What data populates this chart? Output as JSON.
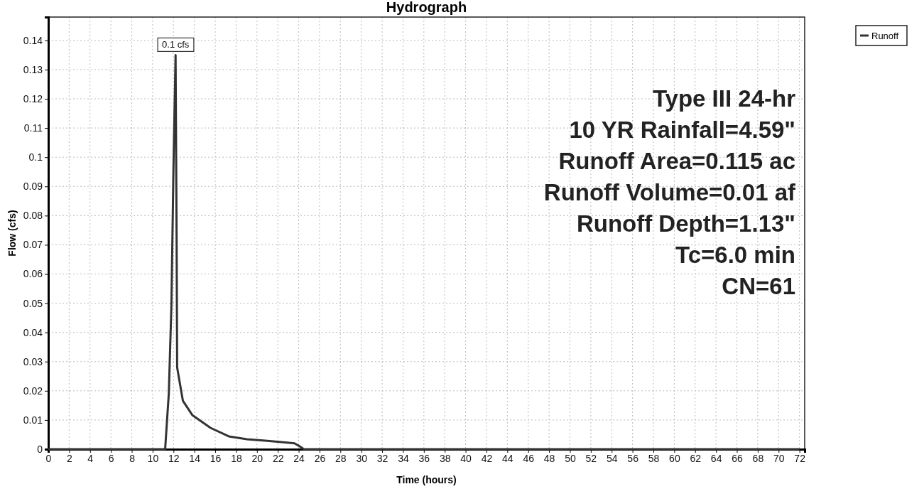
{
  "chart_data": {
    "type": "line",
    "title": "Hydrograph",
    "xlabel": "Time  (hours)",
    "ylabel": "Flow (cfs)",
    "xlim": [
      0,
      72.5
    ],
    "xticks": [
      0,
      2,
      4,
      6,
      8,
      10,
      12,
      14,
      16,
      18,
      20,
      22,
      24,
      26,
      28,
      30,
      32,
      34,
      36,
      38,
      40,
      42,
      44,
      46,
      48,
      50,
      52,
      54,
      56,
      58,
      60,
      62,
      64,
      66,
      68,
      70,
      72
    ],
    "ylim": [
      0,
      0.148
    ],
    "yticks": [
      0,
      0.01,
      0.02,
      0.03,
      0.04,
      0.05,
      0.06,
      0.07,
      0.08,
      0.09,
      0.1,
      0.11,
      0.12,
      0.13,
      0.14
    ],
    "grid": true,
    "legend": "top right",
    "marker": "none",
    "line_style": "solid",
    "series": [
      {
        "name": "Runoff",
        "color": "#333333",
        "x": [
          0,
          11.2,
          11.55,
          11.8,
          12.0,
          12.2,
          12.3,
          12.35,
          12.9,
          13.8,
          15.55,
          17.3,
          19.05,
          20.8,
          22.55,
          23.6,
          24.0,
          24.5,
          72
        ],
        "values": [
          0,
          0,
          0.019,
          0.049,
          0.097,
          0.135,
          0.072,
          0.028,
          0.0166,
          0.0117,
          0.0073,
          0.0044,
          0.0034,
          0.0029,
          0.0024,
          0.002,
          0.0012,
          0,
          0
        ]
      }
    ],
    "annotations": [
      {
        "text": "0.1 cfs",
        "x": 12.2,
        "y": 0.135
      },
      "Type III 24-hr",
      "10 YR Rainfall=4.59\"",
      "Runoff Area=0.115 ac",
      "Runoff Volume=0.01 af",
      "Runoff Depth=1.13\"",
      "Tc=6.0 min",
      "CN=61"
    ]
  }
}
